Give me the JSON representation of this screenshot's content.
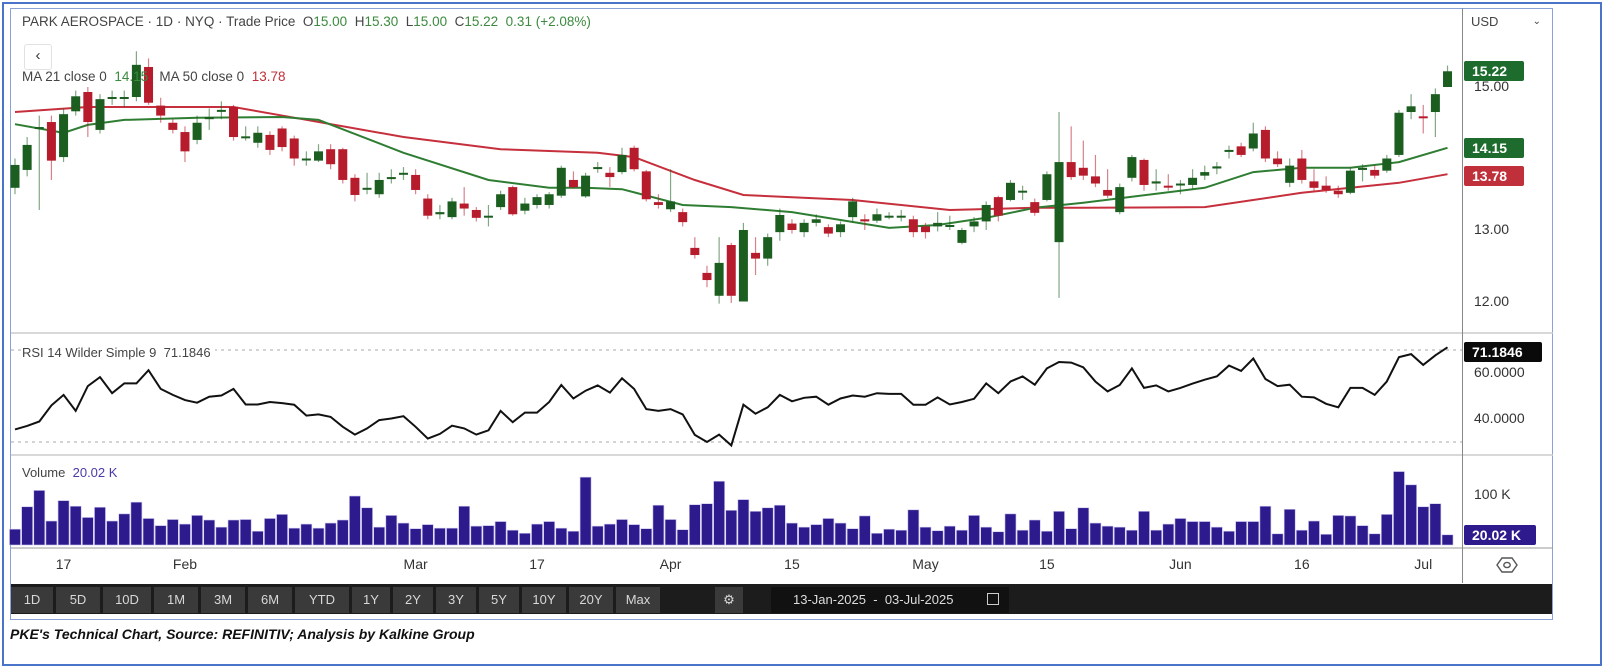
{
  "header": {
    "instrument": "PARK AEROSPACE",
    "interval": "1D",
    "exchange": "NYQ",
    "price_type": "Trade Price",
    "open_label": "O",
    "open": "15.00",
    "high_label": "H",
    "high": "15.30",
    "low_label": "L",
    "low": "15.00",
    "close_label": "C",
    "close": "15.22",
    "change": "0.31 (+2.08%)"
  },
  "back_button": "‹",
  "ma_legend": {
    "ma21_label": "MA 21 close 0",
    "ma21_value": "14.15",
    "ma50_label": "MA 50 close 0",
    "ma50_value": "13.78"
  },
  "rsi_legend": {
    "label": "RSI 14 Wilder Simple 9",
    "value": "71.1846"
  },
  "volume_legend": {
    "label": "Volume",
    "value": "20.02 K"
  },
  "currency": "USD",
  "price_axis": {
    "ticks": [
      "15.00",
      "13.00",
      "12.00"
    ],
    "badges": {
      "last": "15.22",
      "ma21": "14.15",
      "ma50": "13.78"
    }
  },
  "rsi_axis": {
    "ticks": [
      "60.0000",
      "40.0000"
    ],
    "badge": "71.1846"
  },
  "volume_axis": {
    "ticks": [
      "100 K"
    ],
    "badge": "20.02 K"
  },
  "date_axis": [
    {
      "label": "17",
      "date": "01-17"
    },
    {
      "label": "Feb",
      "date": "02-03"
    },
    {
      "label": "Mar",
      "date": "03-03"
    },
    {
      "label": "17",
      "date": "03-17"
    },
    {
      "label": "Apr",
      "date": "04-01"
    },
    {
      "label": "15",
      "date": "04-15"
    },
    {
      "label": "May",
      "date": "05-01"
    },
    {
      "label": "15",
      "date": "05-15"
    },
    {
      "label": "Jun",
      "date": "06-02"
    },
    {
      "label": "16",
      "date": "06-16"
    },
    {
      "label": "Jul",
      "date": "07-01"
    }
  ],
  "toolbar": {
    "ranges": [
      "1D",
      "5D",
      "10D",
      "1M",
      "3M",
      "6M",
      "YTD",
      "1Y",
      "2Y",
      "3Y",
      "5Y",
      "10Y",
      "20Y",
      "Max"
    ],
    "date_from": "13-Jan-2025",
    "date_sep": "-",
    "date_to": "03-Jul-2025"
  },
  "caption": "PKE's Technical Chart, Source: REFINITIV; Analysis by Kalkine Group",
  "colors": {
    "up": "#1b5e20",
    "down": "#b71c2c",
    "ma21": "#2e7d32",
    "ma50": "#c62f3c",
    "volume": "#2d1b8e",
    "rsi": "#111111",
    "frame": "#4a74c9"
  },
  "chart_data": {
    "type": "candlestick",
    "year": 2025,
    "price_ylim": [
      11.8,
      15.5
    ],
    "rsi_ylim": [
      25,
      75
    ],
    "rsi_levels": [
      70,
      30
    ],
    "volume_unit": "K",
    "dates": [
      "01-13",
      "01-14",
      "01-15",
      "01-16",
      "01-17",
      "01-21",
      "01-22",
      "01-23",
      "01-24",
      "01-27",
      "01-28",
      "01-29",
      "01-30",
      "01-31",
      "02-03",
      "02-04",
      "02-05",
      "02-06",
      "02-07",
      "02-10",
      "02-11",
      "02-12",
      "02-13",
      "02-14",
      "02-18",
      "02-19",
      "02-20",
      "02-21",
      "02-24",
      "02-25",
      "02-26",
      "02-27",
      "02-28",
      "03-03",
      "03-04",
      "03-05",
      "03-06",
      "03-07",
      "03-10",
      "03-11",
      "03-12",
      "03-13",
      "03-14",
      "03-17",
      "03-18",
      "03-19",
      "03-20",
      "03-21",
      "03-24",
      "03-25",
      "03-26",
      "03-27",
      "03-28",
      "03-31",
      "04-01",
      "04-02",
      "04-03",
      "04-04",
      "04-07",
      "04-08",
      "04-09",
      "04-10",
      "04-11",
      "04-14",
      "04-15",
      "04-16",
      "04-17",
      "04-21",
      "04-22",
      "04-23",
      "04-24",
      "04-25",
      "04-28",
      "04-29",
      "04-30",
      "05-01",
      "05-02",
      "05-05",
      "05-06",
      "05-07",
      "05-08",
      "05-09",
      "05-12",
      "05-13",
      "05-14",
      "05-15",
      "05-16",
      "05-19",
      "05-20",
      "05-21",
      "05-22",
      "05-23",
      "05-27",
      "05-28",
      "05-29",
      "05-30",
      "06-02",
      "06-03",
      "06-04",
      "06-05",
      "06-06",
      "06-09",
      "06-10",
      "06-11",
      "06-12",
      "06-13",
      "06-16",
      "06-17",
      "06-18",
      "06-20",
      "06-23",
      "06-24",
      "06-25",
      "06-26",
      "06-27",
      "06-30",
      "07-01",
      "07-02",
      "07-03"
    ],
    "ohlc": [
      [
        13.59,
        14.0,
        13.5,
        13.91
      ],
      [
        13.84,
        14.3,
        13.75,
        14.19
      ],
      [
        14.42,
        14.6,
        13.28,
        14.44
      ],
      [
        14.51,
        14.6,
        13.7,
        13.97
      ],
      [
        14.02,
        14.7,
        13.95,
        14.62
      ],
      [
        14.66,
        14.95,
        14.6,
        14.87
      ],
      [
        14.93,
        15.0,
        14.3,
        14.51
      ],
      [
        14.4,
        14.9,
        14.35,
        14.83
      ],
      [
        14.84,
        14.95,
        14.75,
        14.86
      ],
      [
        14.84,
        14.95,
        14.72,
        14.86
      ],
      [
        14.86,
        15.5,
        14.8,
        15.31
      ],
      [
        15.28,
        15.4,
        14.75,
        14.78
      ],
      [
        14.74,
        14.85,
        14.5,
        14.6
      ],
      [
        14.5,
        14.55,
        14.35,
        14.4
      ],
      [
        14.37,
        14.45,
        13.95,
        14.1
      ],
      [
        14.26,
        14.6,
        14.2,
        14.5
      ],
      [
        14.55,
        14.7,
        14.4,
        14.58
      ],
      [
        14.66,
        14.8,
        14.55,
        14.68
      ],
      [
        14.72,
        14.75,
        14.25,
        14.3
      ],
      [
        14.3,
        14.45,
        14.25,
        14.31
      ],
      [
        14.22,
        14.45,
        14.15,
        14.36
      ],
      [
        14.33,
        14.38,
        14.05,
        14.12
      ],
      [
        14.42,
        14.45,
        14.1,
        14.16
      ],
      [
        14.28,
        14.32,
        13.9,
        14.0
      ],
      [
        13.98,
        14.1,
        13.9,
        14.0
      ],
      [
        13.97,
        14.2,
        13.95,
        14.1
      ],
      [
        14.13,
        14.2,
        13.85,
        13.92
      ],
      [
        14.13,
        14.15,
        13.65,
        13.7
      ],
      [
        13.73,
        13.78,
        13.4,
        13.49
      ],
      [
        13.57,
        13.8,
        13.5,
        13.59
      ],
      [
        13.5,
        13.8,
        13.45,
        13.7
      ],
      [
        13.72,
        13.85,
        13.65,
        13.74
      ],
      [
        13.78,
        13.88,
        13.7,
        13.8
      ],
      [
        13.77,
        13.85,
        13.5,
        13.56
      ],
      [
        13.44,
        13.5,
        13.15,
        13.2
      ],
      [
        13.22,
        13.35,
        13.15,
        13.25
      ],
      [
        13.18,
        13.45,
        13.15,
        13.4
      ],
      [
        13.37,
        13.6,
        13.2,
        13.3
      ],
      [
        13.28,
        13.32,
        13.12,
        13.17
      ],
      [
        13.18,
        13.35,
        13.05,
        13.2
      ],
      [
        13.32,
        13.55,
        13.28,
        13.5
      ],
      [
        13.6,
        13.62,
        13.2,
        13.22
      ],
      [
        13.27,
        13.45,
        13.22,
        13.37
      ],
      [
        13.35,
        13.5,
        13.3,
        13.46
      ],
      [
        13.35,
        13.53,
        13.3,
        13.5
      ],
      [
        13.48,
        13.9,
        13.45,
        13.87
      ],
      [
        13.7,
        13.82,
        13.58,
        13.6
      ],
      [
        13.47,
        13.8,
        13.45,
        13.76
      ],
      [
        13.86,
        13.95,
        13.8,
        13.88
      ],
      [
        13.8,
        13.88,
        13.6,
        13.74
      ],
      [
        13.81,
        14.15,
        13.78,
        14.05
      ],
      [
        14.15,
        14.18,
        13.82,
        13.85
      ],
      [
        13.82,
        13.84,
        13.4,
        13.43
      ],
      [
        13.39,
        13.5,
        13.3,
        13.35
      ],
      [
        13.29,
        13.85,
        13.25,
        13.4
      ],
      [
        13.25,
        13.3,
        13.05,
        13.11
      ],
      [
        12.75,
        12.9,
        12.6,
        12.65
      ],
      [
        12.4,
        12.5,
        12.2,
        12.3
      ],
      [
        12.08,
        12.9,
        11.97,
        12.54
      ],
      [
        12.79,
        12.82,
        11.98,
        12.08
      ],
      [
        12.0,
        13.1,
        12.0,
        13.0
      ],
      [
        12.68,
        12.9,
        12.37,
        12.6
      ],
      [
        12.6,
        12.95,
        12.5,
        12.9
      ],
      [
        12.97,
        13.3,
        12.85,
        13.21
      ],
      [
        13.09,
        13.15,
        12.95,
        13.0
      ],
      [
        12.97,
        13.15,
        12.9,
        13.1
      ],
      [
        13.1,
        13.22,
        13.05,
        13.15
      ],
      [
        13.04,
        13.08,
        12.9,
        12.95
      ],
      [
        12.97,
        13.12,
        12.9,
        13.08
      ],
      [
        13.18,
        13.45,
        13.1,
        13.4
      ],
      [
        13.15,
        13.22,
        13.0,
        13.12
      ],
      [
        13.13,
        13.3,
        13.1,
        13.22
      ],
      [
        13.19,
        13.25,
        13.15,
        13.2
      ],
      [
        13.19,
        13.28,
        13.12,
        13.2
      ],
      [
        13.15,
        13.2,
        12.9,
        12.97
      ],
      [
        13.05,
        13.1,
        12.88,
        12.97
      ],
      [
        13.05,
        13.25,
        12.98,
        13.1
      ],
      [
        13.06,
        13.2,
        13.0,
        13.07
      ],
      [
        12.82,
        13.03,
        12.8,
        13.0
      ],
      [
        13.05,
        13.18,
        12.97,
        13.12
      ],
      [
        13.12,
        13.4,
        13.0,
        13.35
      ],
      [
        13.46,
        13.48,
        13.12,
        13.2
      ],
      [
        13.42,
        13.7,
        13.4,
        13.66
      ],
      [
        13.54,
        13.62,
        13.42,
        13.55
      ],
      [
        13.39,
        13.44,
        13.2,
        13.24
      ],
      [
        13.42,
        13.82,
        13.4,
        13.78
      ],
      [
        12.83,
        14.65,
        12.05,
        13.95
      ],
      [
        13.95,
        14.45,
        13.7,
        13.74
      ],
      [
        13.87,
        14.25,
        13.7,
        13.76
      ],
      [
        13.75,
        14.05,
        13.6,
        13.65
      ],
      [
        13.56,
        13.85,
        13.45,
        13.48
      ],
      [
        13.25,
        13.65,
        13.22,
        13.6
      ],
      [
        13.73,
        14.05,
        13.68,
        14.02
      ],
      [
        13.98,
        14.0,
        13.55,
        13.63
      ],
      [
        13.65,
        13.85,
        13.55,
        13.68
      ],
      [
        13.62,
        13.78,
        13.55,
        13.6
      ],
      [
        13.64,
        13.7,
        13.5,
        13.65
      ],
      [
        13.63,
        13.85,
        13.58,
        13.73
      ],
      [
        13.76,
        13.9,
        13.7,
        13.81
      ],
      [
        13.86,
        13.95,
        13.78,
        13.89
      ],
      [
        14.1,
        14.18,
        14.0,
        14.12
      ],
      [
        14.17,
        14.22,
        14.02,
        14.05
      ],
      [
        14.14,
        14.5,
        14.1,
        14.35
      ],
      [
        14.4,
        14.45,
        13.95,
        14.0
      ],
      [
        14.0,
        14.1,
        13.88,
        13.92
      ],
      [
        13.66,
        14.0,
        13.6,
        13.9
      ],
      [
        14.0,
        14.12,
        13.65,
        13.7
      ],
      [
        13.68,
        13.85,
        13.55,
        13.59
      ],
      [
        13.62,
        13.75,
        13.52,
        13.56
      ],
      [
        13.55,
        13.62,
        13.45,
        13.5
      ],
      [
        13.52,
        13.88,
        13.5,
        13.83
      ],
      [
        13.84,
        13.92,
        13.68,
        13.87
      ],
      [
        13.84,
        13.9,
        13.72,
        13.76
      ],
      [
        13.83,
        14.05,
        13.8,
        14.0
      ],
      [
        14.05,
        14.68,
        14.02,
        14.64
      ],
      [
        14.65,
        14.9,
        14.55,
        14.73
      ],
      [
        14.59,
        14.75,
        14.35,
        14.57
      ],
      [
        14.65,
        14.98,
        14.3,
        14.9
      ],
      [
        15.0,
        15.3,
        15.0,
        15.22
      ]
    ],
    "ma21": [
      [
        "01-13",
        14.48
      ],
      [
        "01-17",
        14.36
      ],
      [
        "01-22",
        14.47
      ],
      [
        "01-27",
        14.54
      ],
      [
        "02-04",
        14.57
      ],
      [
        "02-13",
        14.58
      ],
      [
        "02-19",
        14.54
      ],
      [
        "02-28",
        14.08
      ],
      [
        "03-11",
        13.7
      ],
      [
        "03-18",
        13.59
      ],
      [
        "03-21",
        13.59
      ],
      [
        "03-26",
        13.57
      ],
      [
        "04-02",
        13.35
      ],
      [
        "04-08",
        13.32
      ],
      [
        "04-15",
        13.25
      ],
      [
        "04-28",
        13.03
      ],
      [
        "05-02",
        13.07
      ],
      [
        "05-08",
        13.17
      ],
      [
        "05-14",
        13.31
      ],
      [
        "05-20",
        13.38
      ],
      [
        "06-04",
        13.59
      ],
      [
        "06-10",
        13.81
      ],
      [
        "06-16",
        13.87
      ],
      [
        "06-23",
        13.87
      ],
      [
        "06-27",
        13.95
      ],
      [
        "07-03",
        14.15
      ]
    ],
    "ma50": [
      [
        "01-13",
        14.65
      ],
      [
        "01-22",
        14.72
      ],
      [
        "02-07",
        14.72
      ],
      [
        "02-14",
        14.57
      ],
      [
        "02-28",
        14.3
      ],
      [
        "03-12",
        14.13
      ],
      [
        "03-24",
        14.08
      ],
      [
        "03-27",
        14.02
      ],
      [
        "04-03",
        13.7
      ],
      [
        "04-09",
        13.49
      ],
      [
        "04-23",
        13.42
      ],
      [
        "05-05",
        13.28
      ],
      [
        "05-14",
        13.31
      ],
      [
        "05-20",
        13.31
      ],
      [
        "06-04",
        13.32
      ],
      [
        "06-16",
        13.52
      ],
      [
        "06-27",
        13.66
      ],
      [
        "07-03",
        13.78
      ]
    ],
    "rsi": [
      35.5,
      37.0,
      38.9,
      45.9,
      50.5,
      43.5,
      54.3,
      58.2,
      51.2,
      55.5,
      55.5,
      61.2,
      53.1,
      50.5,
      48.2,
      47.1,
      49.7,
      50.2,
      53.1,
      46.3,
      46.3,
      47.4,
      46.9,
      46.2,
      41.5,
      42,
      40.9,
      36.6,
      33.2,
      35.9,
      39.5,
      40.2,
      41.2,
      36.6,
      31.5,
      33.5,
      37.1,
      35.9,
      33.2,
      35.1,
      43.5,
      38.6,
      42.8,
      42.8,
      47.4,
      54.8,
      48.9,
      52.3,
      54.6,
      51.5,
      57.7,
      53.1,
      44.3,
      43.5,
      44.3,
      42,
      33.1,
      30,
      33.2,
      28.5,
      46.2,
      42.3,
      45.1,
      50.5,
      47.7,
      49.2,
      49.7,
      46.2,
      48.9,
      50.2,
      49.7,
      51.2,
      50.9,
      50.9,
      46.2,
      46.2,
      49.4,
      46.3,
      47.4,
      48.8,
      55.5,
      51.2,
      56.3,
      58.5,
      54.9,
      62,
      64.8,
      64.5,
      62.5,
      56.2,
      52,
      54.8,
      62,
      53.5,
      54.6,
      52,
      53.5,
      55.4,
      57.1,
      58.5,
      63.2,
      60.9,
      66.3,
      57.4,
      54.3,
      54.9,
      49.7,
      49.4,
      46.6,
      45.1,
      53.5,
      53.5,
      50.5,
      56.3,
      66.9,
      68.2,
      63.5,
      67.7,
      71.1846
    ],
    "volume": [
      31,
      75,
      107,
      47,
      87,
      76,
      54,
      74,
      47,
      61,
      84,
      52,
      38,
      50,
      41,
      58,
      49,
      35,
      49,
      50,
      27,
      52,
      60,
      33,
      41,
      33,
      43,
      49,
      96,
      73,
      35,
      58,
      43,
      32,
      40,
      33,
      33,
      76,
      37,
      38,
      46,
      29,
      23,
      41,
      46,
      33,
      27,
      133,
      37,
      41,
      50,
      40,
      32,
      78,
      50,
      30,
      79,
      81,
      125,
      68,
      89,
      66,
      73,
      78,
      43,
      35,
      40,
      52,
      43,
      32,
      57,
      23,
      31,
      29,
      69,
      35,
      28,
      37,
      29,
      58,
      35,
      26,
      61,
      29,
      49,
      27,
      66,
      32,
      73,
      43,
      37,
      35,
      29,
      66,
      29,
      41,
      52,
      46,
      46,
      35,
      27,
      46,
      46,
      76,
      22,
      70,
      29,
      47,
      21,
      58,
      57,
      38,
      22,
      60,
      144,
      118,
      75,
      81,
      20.02
    ]
  }
}
